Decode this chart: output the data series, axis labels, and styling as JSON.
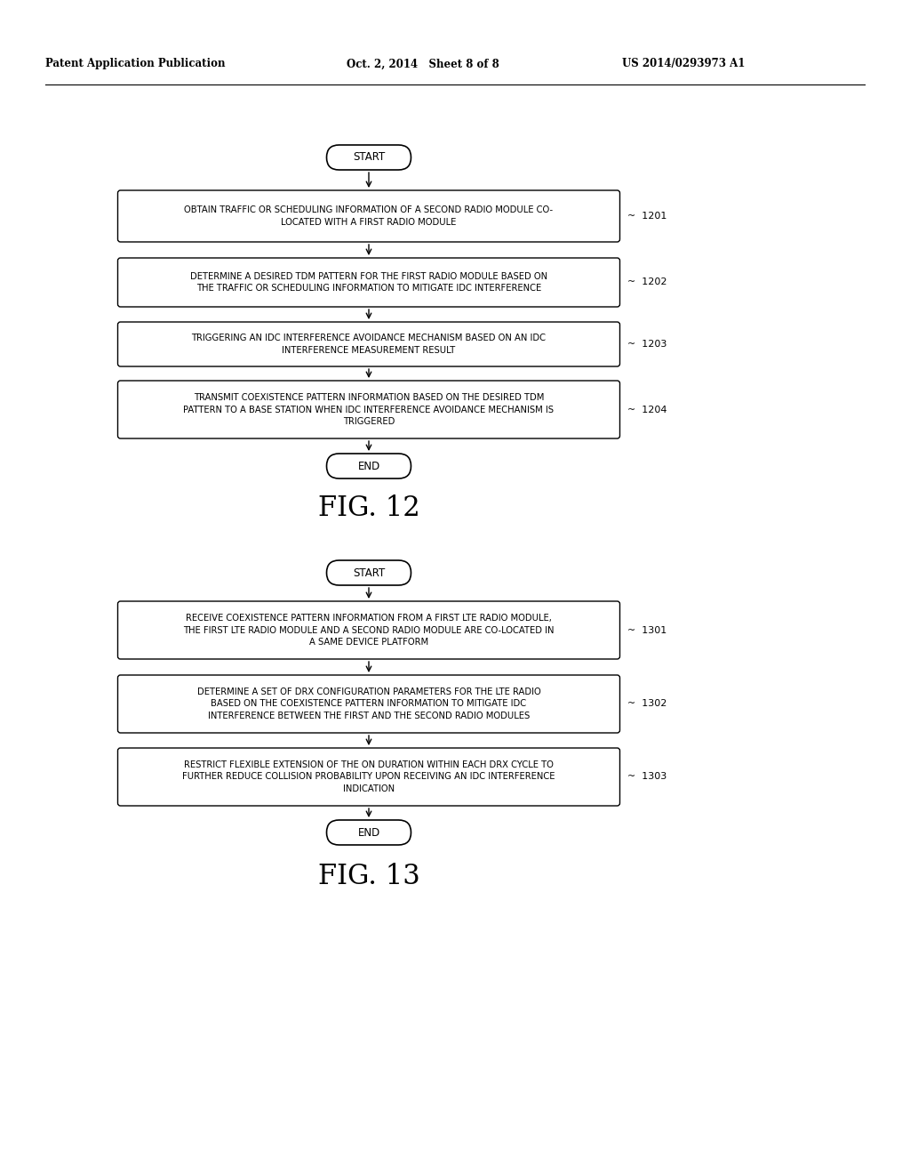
{
  "bg_color": "#ffffff",
  "header_left": "Patent Application Publication",
  "header_mid": "Oct. 2, 2014   Sheet 8 of 8",
  "header_right": "US 2014/0293973 A1",
  "fig12": {
    "title": "FIG. 12",
    "start_label": "START",
    "end_label": "END",
    "boxes": [
      {
        "label": "OBTAIN TRAFFIC OR SCHEDULING INFORMATION OF A SECOND RADIO MODULE CO-\nLOCATED WITH A FIRST RADIO MODULE",
        "ref": "1201"
      },
      {
        "label": "DETERMINE A DESIRED TDM PATTERN FOR THE FIRST RADIO MODULE BASED ON\nTHE TRAFFIC OR SCHEDULING INFORMATION TO MITIGATE IDC INTERFERENCE",
        "ref": "1202"
      },
      {
        "label": "TRIGGERING AN IDC INTERFERENCE AVOIDANCE MECHANISM BASED ON AN IDC\nINTERFERENCE MEASUREMENT RESULT",
        "ref": "1203"
      },
      {
        "label": "TRANSMIT COEXISTENCE PATTERN INFORMATION BASED ON THE DESIRED TDM\nPATTERN TO A BASE STATION WHEN IDC INTERFERENCE AVOIDANCE MECHANISM IS\nTRIGGERED",
        "ref": "1204"
      }
    ]
  },
  "fig13": {
    "title": "FIG. 13",
    "start_label": "START",
    "end_label": "END",
    "boxes": [
      {
        "label": "RECEIVE COEXISTENCE PATTERN INFORMATION FROM A FIRST LTE RADIO MODULE,\nTHE FIRST LTE RADIO MODULE AND A SECOND RADIO MODULE ARE CO-LOCATED IN\nA SAME DEVICE PLATFORM",
        "ref": "1301"
      },
      {
        "label": "DETERMINE A SET OF DRX CONFIGURATION PARAMETERS FOR THE LTE RADIO\nBASED ON THE COEXISTENCE PATTERN INFORMATION TO MITIGATE IDC\nINTERFERENCE BETWEEN THE FIRST AND THE SECOND RADIO MODULES",
        "ref": "1302"
      },
      {
        "label": "RESTRICT FLEXIBLE EXTENSION OF THE ON DURATION WITHIN EACH DRX CYCLE TO\nFURTHER REDUCE COLLISION PROBABILITY UPON RECEIVING AN IDC INTERFERENCE\nINDICATION",
        "ref": "1303"
      }
    ]
  }
}
